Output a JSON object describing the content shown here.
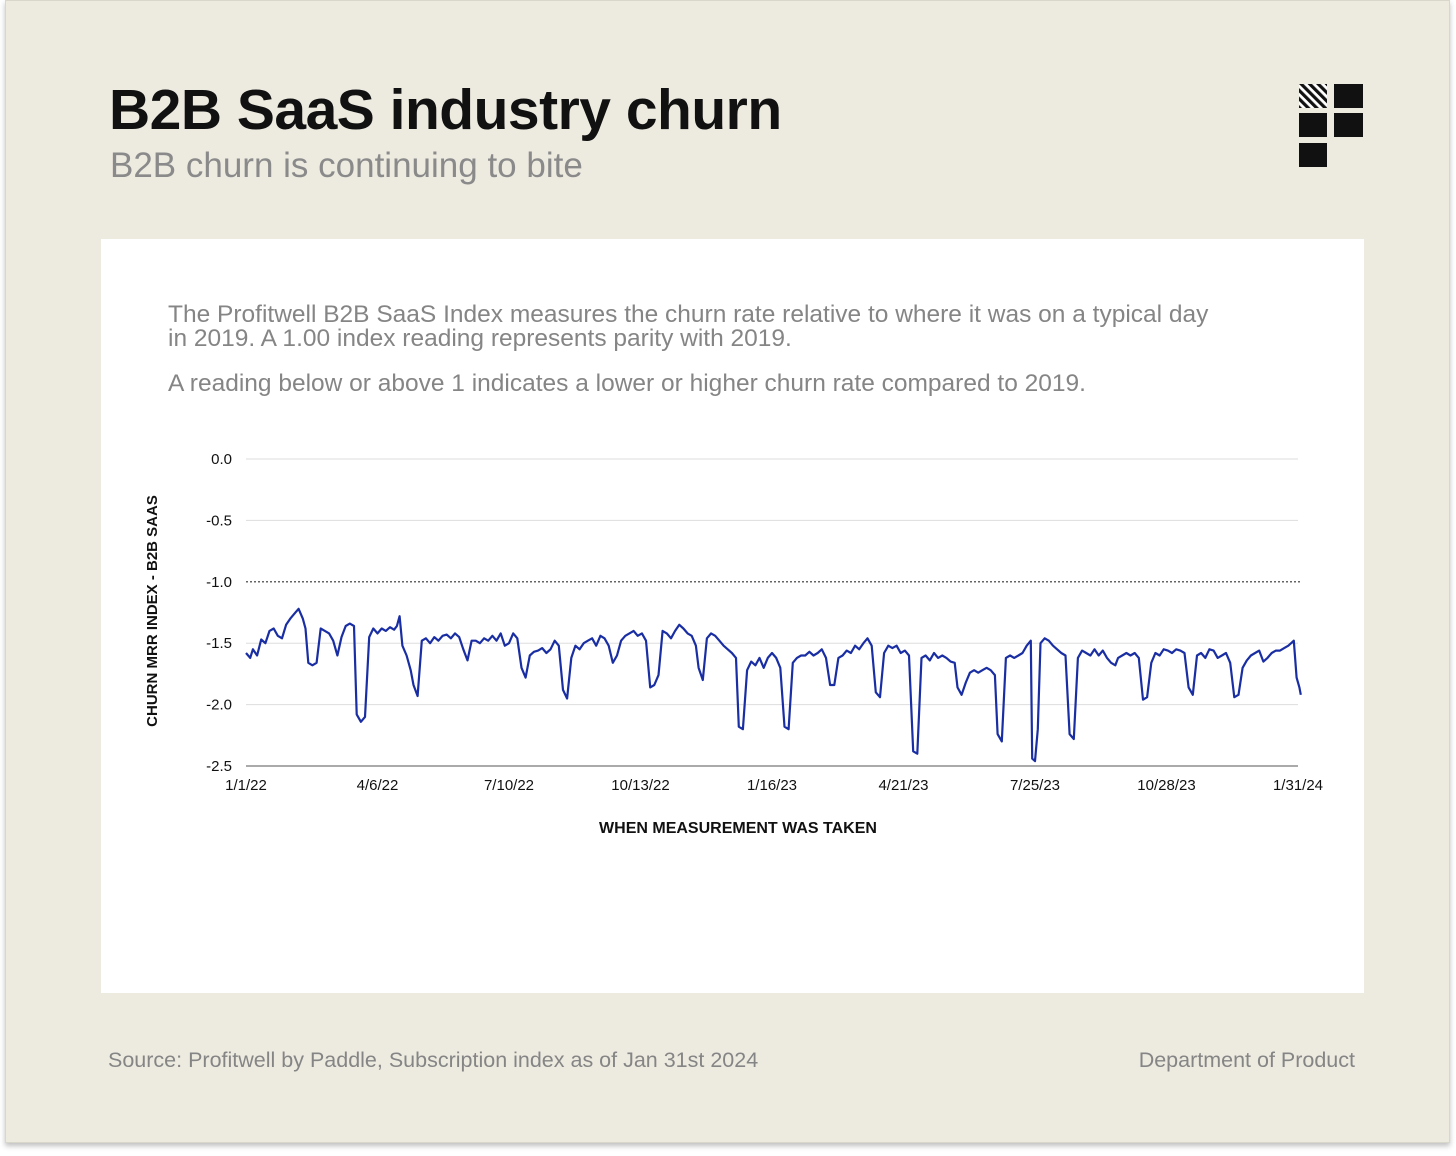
{
  "header": {
    "title": "B2B SaaS industry churn",
    "subtitle": "B2B churn is continuing to bite"
  },
  "description": {
    "paragraph1": "The Profitwell B2B SaaS Index measures the churn rate relative to where it was on a typical day in 2019. A 1.00 index reading represents parity with 2019.",
    "paragraph2": "A reading below or above 1 indicates a lower or higher churn rate compared to 2019."
  },
  "footer": {
    "source": "Source: Profitwell by Paddle, Subscription index as of Jan 31st 2024",
    "brand": "Department of Product"
  },
  "logo_icon": "department-of-product-logo-icon",
  "colors": {
    "background": "#edeae0",
    "card": "#ffffff",
    "line": "#1a2ea3",
    "reference_line": "#333333",
    "gridline": "#dddddd"
  },
  "chart_data": {
    "type": "line",
    "title": "",
    "xlabel": "WHEN MEASUREMENT WAS TAKEN",
    "ylabel": "CHURN MRR INDEX - B2B SAAS",
    "ylim": [
      -2.5,
      0.0
    ],
    "yticks": [
      "0.0",
      "-0.5",
      "-1.0",
      "-1.5",
      "-2.0",
      "-2.5"
    ],
    "ytick_values": [
      0.0,
      -0.5,
      -1.0,
      -1.5,
      -2.0,
      -2.5
    ],
    "xticks": [
      "1/1/22",
      "4/6/22",
      "7/10/22",
      "10/13/22",
      "1/16/23",
      "4/21/23",
      "7/25/23",
      "10/28/23",
      "1/31/24"
    ],
    "grid": true,
    "reference_line": {
      "y": -1.0,
      "style": "dotted"
    },
    "series": [
      {
        "name": "B2B SaaS",
        "x_start": 0,
        "x_end": 760,
        "x_unit": "days since 1/1/22",
        "points": [
          [
            0,
            -1.58
          ],
          [
            3,
            -1.62
          ],
          [
            5,
            -1.55
          ],
          [
            8,
            -1.6
          ],
          [
            11,
            -1.47
          ],
          [
            14,
            -1.5
          ],
          [
            17,
            -1.4
          ],
          [
            20,
            -1.38
          ],
          [
            23,
            -1.44
          ],
          [
            26,
            -1.46
          ],
          [
            29,
            -1.35
          ],
          [
            32,
            -1.3
          ],
          [
            35,
            -1.26
          ],
          [
            38,
            -1.22
          ],
          [
            41,
            -1.3
          ],
          [
            43,
            -1.38
          ],
          [
            45,
            -1.66
          ],
          [
            48,
            -1.68
          ],
          [
            51,
            -1.66
          ],
          [
            54,
            -1.38
          ],
          [
            57,
            -1.4
          ],
          [
            60,
            -1.42
          ],
          [
            63,
            -1.48
          ],
          [
            66,
            -1.6
          ],
          [
            69,
            -1.45
          ],
          [
            72,
            -1.36
          ],
          [
            75,
            -1.34
          ],
          [
            78,
            -1.36
          ],
          [
            80,
            -2.08
          ],
          [
            83,
            -2.14
          ],
          [
            86,
            -2.1
          ],
          [
            89,
            -1.45
          ],
          [
            92,
            -1.38
          ],
          [
            95,
            -1.42
          ],
          [
            98,
            -1.38
          ],
          [
            101,
            -1.4
          ],
          [
            104,
            -1.37
          ],
          [
            107,
            -1.39
          ],
          [
            109,
            -1.36
          ],
          [
            111,
            -1.28
          ],
          [
            113,
            -1.52
          ],
          [
            116,
            -1.6
          ],
          [
            119,
            -1.72
          ],
          [
            121,
            -1.84
          ],
          [
            124,
            -1.93
          ],
          [
            127,
            -1.48
          ],
          [
            130,
            -1.46
          ],
          [
            133,
            -1.5
          ],
          [
            136,
            -1.45
          ],
          [
            139,
            -1.48
          ],
          [
            142,
            -1.44
          ],
          [
            145,
            -1.43
          ],
          [
            148,
            -1.46
          ],
          [
            151,
            -1.42
          ],
          [
            154,
            -1.45
          ],
          [
            157,
            -1.55
          ],
          [
            160,
            -1.64
          ],
          [
            163,
            -1.48
          ],
          [
            166,
            -1.48
          ],
          [
            169,
            -1.5
          ],
          [
            172,
            -1.46
          ],
          [
            175,
            -1.48
          ],
          [
            178,
            -1.44
          ],
          [
            181,
            -1.48
          ],
          [
            184,
            -1.42
          ],
          [
            187,
            -1.52
          ],
          [
            190,
            -1.5
          ],
          [
            193,
            -1.42
          ],
          [
            196,
            -1.46
          ],
          [
            199,
            -1.7
          ],
          [
            202,
            -1.78
          ],
          [
            205,
            -1.6
          ],
          [
            208,
            -1.57
          ],
          [
            211,
            -1.56
          ],
          [
            214,
            -1.54
          ],
          [
            217,
            -1.58
          ],
          [
            220,
            -1.55
          ],
          [
            223,
            -1.48
          ],
          [
            226,
            -1.52
          ],
          [
            229,
            -1.88
          ],
          [
            232,
            -1.95
          ],
          [
            235,
            -1.62
          ],
          [
            238,
            -1.52
          ],
          [
            241,
            -1.55
          ],
          [
            244,
            -1.5
          ],
          [
            247,
            -1.48
          ],
          [
            250,
            -1.46
          ],
          [
            253,
            -1.52
          ],
          [
            256,
            -1.44
          ],
          [
            259,
            -1.46
          ],
          [
            262,
            -1.52
          ],
          [
            265,
            -1.66
          ],
          [
            268,
            -1.6
          ],
          [
            271,
            -1.48
          ],
          [
            274,
            -1.44
          ],
          [
            277,
            -1.42
          ],
          [
            280,
            -1.4
          ],
          [
            283,
            -1.44
          ],
          [
            286,
            -1.42
          ],
          [
            289,
            -1.48
          ],
          [
            292,
            -1.86
          ],
          [
            295,
            -1.84
          ],
          [
            298,
            -1.76
          ],
          [
            301,
            -1.4
          ],
          [
            304,
            -1.42
          ],
          [
            307,
            -1.46
          ],
          [
            310,
            -1.4
          ],
          [
            313,
            -1.35
          ],
          [
            316,
            -1.38
          ],
          [
            319,
            -1.42
          ],
          [
            322,
            -1.44
          ],
          [
            325,
            -1.52
          ],
          [
            327,
            -1.7
          ],
          [
            330,
            -1.8
          ],
          [
            333,
            -1.46
          ],
          [
            336,
            -1.42
          ],
          [
            339,
            -1.44
          ],
          [
            342,
            -1.48
          ],
          [
            345,
            -1.52
          ],
          [
            348,
            -1.55
          ],
          [
            351,
            -1.58
          ],
          [
            354,
            -1.62
          ],
          [
            356,
            -2.18
          ],
          [
            359,
            -2.2
          ],
          [
            362,
            -1.72
          ],
          [
            365,
            -1.65
          ],
          [
            368,
            -1.68
          ],
          [
            371,
            -1.62
          ],
          [
            374,
            -1.7
          ],
          [
            377,
            -1.62
          ],
          [
            380,
            -1.58
          ],
          [
            383,
            -1.62
          ],
          [
            386,
            -1.7
          ],
          [
            389,
            -2.18
          ],
          [
            392,
            -2.2
          ],
          [
            395,
            -1.66
          ],
          [
            398,
            -1.62
          ],
          [
            401,
            -1.6
          ],
          [
            404,
            -1.6
          ],
          [
            407,
            -1.57
          ],
          [
            410,
            -1.6
          ],
          [
            413,
            -1.58
          ],
          [
            416,
            -1.55
          ],
          [
            419,
            -1.62
          ],
          [
            422,
            -1.84
          ],
          [
            425,
            -1.84
          ],
          [
            428,
            -1.62
          ],
          [
            431,
            -1.6
          ],
          [
            434,
            -1.56
          ],
          [
            437,
            -1.58
          ],
          [
            440,
            -1.52
          ],
          [
            443,
            -1.55
          ],
          [
            446,
            -1.5
          ],
          [
            449,
            -1.46
          ],
          [
            452,
            -1.52
          ],
          [
            455,
            -1.9
          ],
          [
            458,
            -1.94
          ],
          [
            461,
            -1.58
          ],
          [
            464,
            -1.52
          ],
          [
            467,
            -1.54
          ],
          [
            470,
            -1.52
          ],
          [
            473,
            -1.58
          ],
          [
            476,
            -1.56
          ],
          [
            479,
            -1.6
          ],
          [
            482,
            -2.38
          ],
          [
            485,
            -2.4
          ],
          [
            488,
            -1.62
          ],
          [
            491,
            -1.6
          ],
          [
            494,
            -1.64
          ],
          [
            497,
            -1.58
          ],
          [
            500,
            -1.62
          ],
          [
            503,
            -1.6
          ],
          [
            506,
            -1.62
          ],
          [
            509,
            -1.65
          ],
          [
            512,
            -1.66
          ],
          [
            514,
            -1.86
          ],
          [
            517,
            -1.92
          ],
          [
            520,
            -1.82
          ],
          [
            523,
            -1.74
          ],
          [
            526,
            -1.72
          ],
          [
            529,
            -1.74
          ],
          [
            532,
            -1.72
          ],
          [
            535,
            -1.7
          ],
          [
            538,
            -1.72
          ],
          [
            541,
            -1.76
          ],
          [
            543,
            -2.24
          ],
          [
            546,
            -2.3
          ],
          [
            549,
            -1.62
          ],
          [
            552,
            -1.6
          ],
          [
            555,
            -1.62
          ],
          [
            558,
            -1.6
          ],
          [
            561,
            -1.58
          ],
          [
            564,
            -1.52
          ],
          [
            567,
            -1.48
          ],
          [
            568,
            -2.44
          ],
          [
            570,
            -2.46
          ],
          [
            572,
            -2.2
          ],
          [
            574,
            -1.5
          ],
          [
            577,
            -1.46
          ],
          [
            580,
            -1.48
          ],
          [
            583,
            -1.52
          ],
          [
            586,
            -1.55
          ],
          [
            589,
            -1.58
          ],
          [
            592,
            -1.6
          ],
          [
            595,
            -2.24
          ],
          [
            598,
            -2.28
          ],
          [
            601,
            -1.62
          ],
          [
            604,
            -1.56
          ],
          [
            607,
            -1.58
          ],
          [
            610,
            -1.6
          ],
          [
            613,
            -1.55
          ],
          [
            616,
            -1.6
          ],
          [
            619,
            -1.56
          ],
          [
            622,
            -1.62
          ],
          [
            625,
            -1.66
          ],
          [
            628,
            -1.68
          ],
          [
            630,
            -1.62
          ],
          [
            633,
            -1.6
          ],
          [
            636,
            -1.58
          ],
          [
            639,
            -1.6
          ],
          [
            642,
            -1.58
          ],
          [
            645,
            -1.62
          ],
          [
            648,
            -1.96
          ],
          [
            651,
            -1.94
          ],
          [
            654,
            -1.66
          ],
          [
            657,
            -1.58
          ],
          [
            660,
            -1.6
          ],
          [
            663,
            -1.55
          ],
          [
            666,
            -1.56
          ],
          [
            669,
            -1.58
          ],
          [
            672,
            -1.55
          ],
          [
            675,
            -1.56
          ],
          [
            678,
            -1.58
          ],
          [
            681,
            -1.86
          ],
          [
            684,
            -1.92
          ],
          [
            687,
            -1.6
          ],
          [
            690,
            -1.58
          ],
          [
            693,
            -1.62
          ],
          [
            696,
            -1.55
          ],
          [
            699,
            -1.56
          ],
          [
            702,
            -1.62
          ],
          [
            705,
            -1.6
          ],
          [
            708,
            -1.58
          ],
          [
            711,
            -1.66
          ],
          [
            714,
            -1.94
          ],
          [
            717,
            -1.92
          ],
          [
            720,
            -1.7
          ],
          [
            723,
            -1.64
          ],
          [
            726,
            -1.6
          ],
          [
            729,
            -1.58
          ],
          [
            732,
            -1.56
          ],
          [
            735,
            -1.65
          ],
          [
            738,
            -1.62
          ],
          [
            741,
            -1.58
          ],
          [
            744,
            -1.56
          ],
          [
            747,
            -1.56
          ],
          [
            750,
            -1.54
          ],
          [
            753,
            -1.52
          ],
          [
            755,
            -1.5
          ],
          [
            757,
            -1.48
          ],
          [
            759,
            -1.78
          ],
          [
            761,
            -1.86
          ],
          [
            762,
            -1.92
          ]
        ]
      }
    ]
  }
}
